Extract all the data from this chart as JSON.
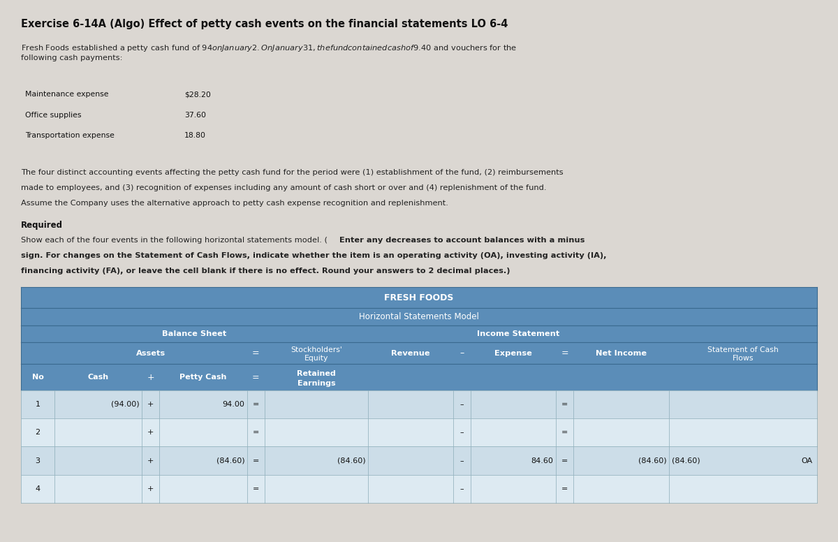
{
  "title": "Exercise 6-14A (Algo) Effect of petty cash events on the financial statements LO 6-4",
  "bg_color": "#dbd7d2",
  "paragraph1_line1": "Fresh Foods established a petty cash fund of $94 on January 2. On January 31, the fund contained cash of $9.40 and vouchers for the",
  "paragraph1_line2": "following cash payments:",
  "expense_items": [
    [
      "Maintenance expense",
      "$28.20"
    ],
    [
      "Office supplies",
      "37.60"
    ],
    [
      "Transportation expense",
      "18.80"
    ]
  ],
  "paragraph2_line1": "The four distinct accounting events affecting the petty cash fund for the period were (1) establishment of the fund, (2) reimbursements",
  "paragraph2_line2": "made to employees, and (3) recognition of expenses including any amount of cash short or over and (4) replenishment of the fund.",
  "paragraph2_line3": "Assume the Company uses the alternative approach to petty cash expense recognition and replenishment.",
  "required_text": "Required",
  "para3_normal": "Show each of the four events in the following horizontal statements model. (",
  "para3_bold_line1": "Enter any decreases to account balances with a minus",
  "para3_bold_line2": "sign. For changes on the Statement of Cash Flows, indicate whether the item is an operating activity (OA), investing activity (IA),",
  "para3_bold_line3": "financing activity (FA), or leave the cell blank if there is no effect. Round your answers to 2 decimal places.)",
  "table_title1": "FRESH FOODS",
  "table_title2": "Horizontal Statements Model",
  "header_bg": "#5b8db8",
  "row_bg_odd": "#ccdde8",
  "row_bg_even": "#ddeaf2",
  "expense_table_header_color": "#b0bfc8",
  "expense_table_row1_color": "#e0e0e0",
  "expense_table_row2_color": "#ececec",
  "expense_table_row3_color": "#e0e0e0",
  "rows": [
    {
      "no": "1",
      "cash": "(94.00)",
      "petty_cash": "94.00",
      "retained": "",
      "revenue": "",
      "expense": "",
      "net_income": "",
      "cash_flows": "",
      "cf_label": ""
    },
    {
      "no": "2",
      "cash": "",
      "petty_cash": "",
      "retained": "",
      "revenue": "",
      "expense": "",
      "net_income": "",
      "cash_flows": "",
      "cf_label": ""
    },
    {
      "no": "3",
      "cash": "",
      "petty_cash": "(84.60)",
      "retained": "(84.60)",
      "revenue": "",
      "expense": "84.60",
      "net_income": "(84.60)",
      "cash_flows": "(84.60)",
      "cf_label": "OA"
    },
    {
      "no": "4",
      "cash": "",
      "petty_cash": "",
      "retained": "",
      "revenue": "",
      "expense": "",
      "net_income": "",
      "cash_flows": "",
      "cf_label": ""
    }
  ]
}
